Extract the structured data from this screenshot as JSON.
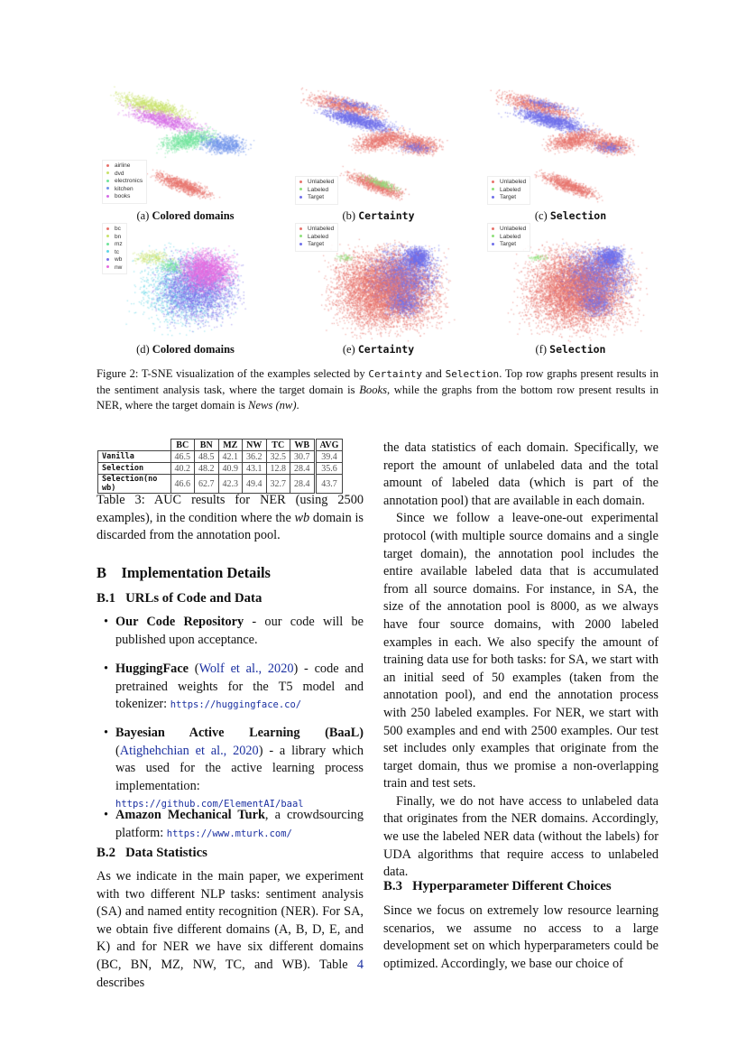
{
  "figure": {
    "panels": [
      {
        "label": "(a)",
        "title": "Colored domains",
        "mono": false,
        "legend": [
          {
            "name": "airline",
            "color": "#e8726b"
          },
          {
            "name": "dvd",
            "color": "#c9e26a"
          },
          {
            "name": "electronics",
            "color": "#6fe39a"
          },
          {
            "name": "kitchen",
            "color": "#6f93ea"
          },
          {
            "name": "books",
            "color": "#d56be6"
          }
        ]
      },
      {
        "label": "(b)",
        "title": "Certainty",
        "mono": true,
        "legend": [
          {
            "name": "Unlabeled",
            "color": "#e8726b"
          },
          {
            "name": "Labeled",
            "color": "#8fe07a"
          },
          {
            "name": "Target",
            "color": "#6f6fea"
          }
        ]
      },
      {
        "label": "(c)",
        "title": "Selection",
        "mono": true,
        "legend": [
          {
            "name": "Unlabeled",
            "color": "#e8726b"
          },
          {
            "name": "Labeled",
            "color": "#8fe07a"
          },
          {
            "name": "Target",
            "color": "#6f6fea"
          }
        ]
      },
      {
        "label": "(d)",
        "title": "Colored domains",
        "mono": false,
        "legend": [
          {
            "name": "bc",
            "color": "#e8726b"
          },
          {
            "name": "bn",
            "color": "#c9e26a"
          },
          {
            "name": "mz",
            "color": "#6fe39a"
          },
          {
            "name": "tc",
            "color": "#5fd6e6"
          },
          {
            "name": "wb",
            "color": "#7a6fea"
          },
          {
            "name": "nw",
            "color": "#e66be0"
          }
        ]
      },
      {
        "label": "(e)",
        "title": "Certainty",
        "mono": true,
        "legend": [
          {
            "name": "Unlabeled",
            "color": "#e8726b"
          },
          {
            "name": "Labeled",
            "color": "#8fe07a"
          },
          {
            "name": "Target",
            "color": "#6f6fea"
          }
        ]
      },
      {
        "label": "(f)",
        "title": "Selection",
        "mono": true,
        "legend": [
          {
            "name": "Unlabeled",
            "color": "#e8726b"
          },
          {
            "name": "Labeled",
            "color": "#8fe07a"
          },
          {
            "name": "Target",
            "color": "#6f6fea"
          }
        ]
      }
    ],
    "caption": {
      "p1": "Figure 2: T-SNE visualization of the examples selected by ",
      "m1": "Certainty",
      "p2": " and ",
      "m2": "Selection",
      "p3": ". Top row graphs present results in the sentiment analysis task, where the target domain is ",
      "i1": "Books",
      "p4": ", while the graphs from the bottom row present results in NER, where the target domain is ",
      "i2": "News (nw)",
      "p5": "."
    }
  },
  "table": {
    "headers": [
      "",
      "BC",
      "BN",
      "MZ",
      "NW",
      "TC",
      "WB",
      "AVG"
    ],
    "rows": [
      [
        "Vanilla",
        "46.5",
        "48.5",
        "42.1",
        "36.2",
        "32.5",
        "30.7",
        "39.4"
      ],
      [
        "Selection",
        "40.2",
        "48.2",
        "40.9",
        "43.1",
        "12.8",
        "28.4",
        "35.6"
      ],
      [
        "Selection(no wb)",
        "46.6",
        "62.7",
        "42.3",
        "49.4",
        "32.7",
        "28.4",
        "43.7"
      ]
    ],
    "caption_a": "Table 3: AUC results for NER (using 2500 examples), in the condition where the ",
    "caption_i": "wb",
    "caption_b": " domain is discarded from the annotation pool."
  },
  "section_b": {
    "num": "B",
    "title": "Implementation Details"
  },
  "b1": {
    "num": "B.1",
    "title": "URLs of Code and Data",
    "bullets": [
      {
        "bold": "Our Code Repository",
        "text": " - our code will be published upon acceptance."
      },
      {
        "bold": "HuggingFace",
        "cite": "Wolf et al., 2020",
        "text": " - code and pretrained weights for the T5 model and tokenizer: ",
        "url": "https://huggingface.co/"
      },
      {
        "bold": "Bayesian Active Learning (BaaL)",
        "cite": "Atighehchian et al., 2020",
        "text": " - a library which was used for the active learning process implementation: ",
        "url": "https://github.com/ElementAI/baal"
      },
      {
        "bold": "Amazon Mechanical Turk",
        "text": ", a crowdsourcing platform: ",
        "url": "https://www.mturk.com/"
      }
    ]
  },
  "b2": {
    "num": "B.2",
    "title": "Data Statistics",
    "p1a": "As we indicate in the main paper, we experiment with two different NLP tasks: sentiment analysis (SA) and named entity recognition (NER). For SA, we obtain five different domains (A, B, D, E, and K) and for NER we have six different domains (BC, BN, MZ, NW, TC, and WB). Table ",
    "p1ref": "4",
    "p1b": " describes",
    "p1c": "the data statistics of each domain. Specifically, we report the amount of unlabeled data and the total amount of labeled data (which is part of the annotation pool) that are available in each domain.",
    "p2": "Since we follow a leave-one-out experimental protocol (with multiple source domains and a single target domain), the annotation pool includes the entire available labeled data that is accumulated from all source domains. For instance, in SA, the size of the annotation pool is 8000, as we always have four source domains, with 2000 labeled examples in each. We also specify the amount of training data use for both tasks: for SA, we start with an initial seed of 50 examples (taken from the annotation pool), and end the annotation process with 250 labeled examples. For NER, we start with 500 examples and end with 2500 examples. Our test set includes only examples that originate from the target domain, thus we promise a non-overlapping train and test sets.",
    "p3": "Finally, we do not have access to unlabeled data that originates from the NER domains. Accordingly, we use the labeled NER data (without the labels) for UDA algorithms that require access to unlabeled data."
  },
  "b3": {
    "num": "B.3",
    "title": "Hyperparameter Different Choices",
    "p1": "Since we focus on extremely low resource learning scenarios, we assume no access to a large development set on which hyperparameters could be optimized. Accordingly, we base our choice of"
  }
}
